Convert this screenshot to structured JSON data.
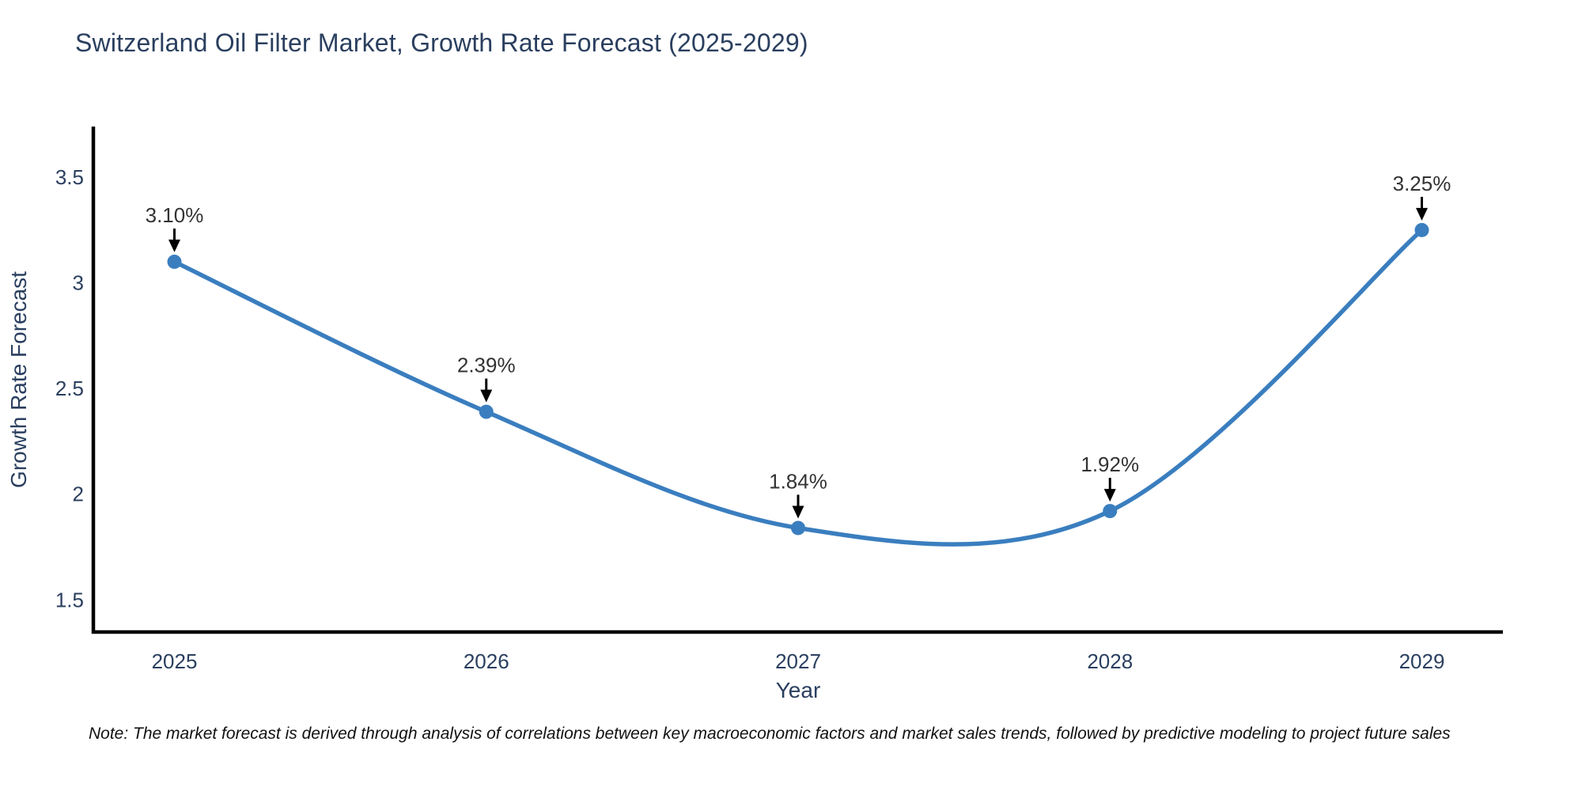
{
  "figure": {
    "title": "Switzerland Oil Filter Market, Growth Rate Forecast (2025-2029)",
    "note": "Note: The market forecast is derived through analysis of correlations between key macroeconomic factors and market sales trends, followed by predictive modeling to project future sales"
  },
  "chart_data": {
    "type": "line",
    "title": "Switzerland Oil Filter Market, Growth Rate Forecast (2025-2029)",
    "x": [
      2025,
      2026,
      2027,
      2028,
      2029
    ],
    "series": [
      {
        "name": "Growth Rate Forecast",
        "values": [
          3.1,
          2.39,
          1.84,
          1.92,
          3.25
        ]
      }
    ],
    "point_labels": [
      "3.10%",
      "2.39%",
      "1.84%",
      "1.92%",
      "3.25%"
    ],
    "xlabel": "Year",
    "ylabel": "Growth Rate Forecast",
    "x_tick_labels": [
      "2025",
      "2026",
      "2027",
      "2028",
      "2029"
    ],
    "y_ticks": [
      1.5,
      2,
      2.5,
      3,
      3.5
    ],
    "y_tick_labels": [
      "1.5",
      "2",
      "2.5",
      "3",
      "3.5"
    ],
    "xlim": [
      2024.74,
      2029.26
    ],
    "ylim": [
      1.34,
      3.74
    ],
    "grid": false,
    "legend": "none",
    "curve": "smooth-spline",
    "annotation_arrows": true,
    "colors": {
      "line": "#3a7ebf",
      "marker": "#3a7ebf",
      "axis": "#000000",
      "tick_text": "#2a3f5f",
      "title_text": "#2a3f5f",
      "annotation_text": "#333333",
      "arrow": "#000000",
      "background": "#ffffff"
    }
  }
}
